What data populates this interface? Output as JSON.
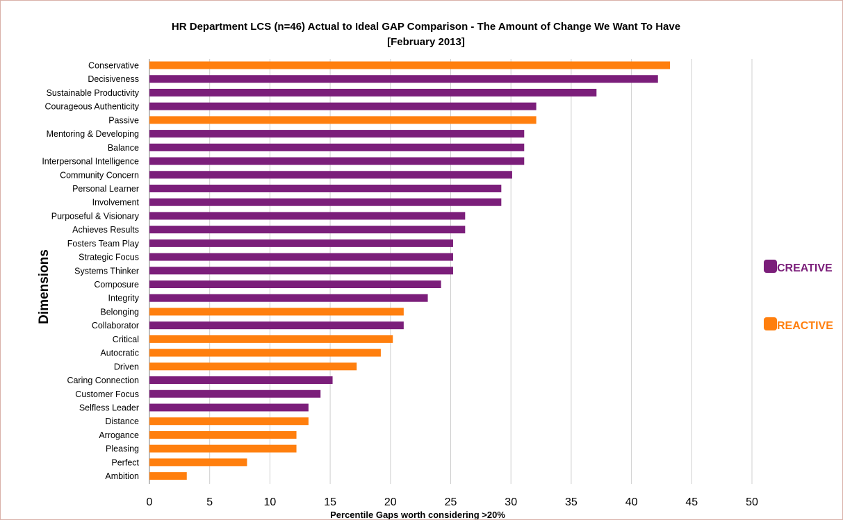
{
  "chart_data": {
    "type": "bar",
    "orientation": "horizontal",
    "title_line1": "HR Department LCS (n=46) Actual to Ideal GAP Comparison - The Amount of Change We Want To Have",
    "title_line2": "[February 2013]",
    "xlabel": "Percentile  Gaps worth considering >20%",
    "ylabel": "Dimensions",
    "xlim": [
      0,
      50
    ],
    "xticks": [
      0,
      5,
      10,
      15,
      20,
      25,
      30,
      35,
      40,
      45,
      50
    ],
    "grid": true,
    "legend_position": "right",
    "legend": [
      {
        "key": "creative",
        "label": "CREATIVE",
        "color": "#7b1e7a"
      },
      {
        "key": "reactive",
        "label": "REACTIVE",
        "color": "#ff7f0e"
      }
    ],
    "bars": [
      {
        "category": "Conservative",
        "value": 43.2,
        "group": "reactive"
      },
      {
        "category": "Decisiveness",
        "value": 42.2,
        "group": "creative"
      },
      {
        "category": "Sustainable Productivity",
        "value": 37.1,
        "group": "creative"
      },
      {
        "category": "Courageous Authenticity",
        "value": 32.1,
        "group": "creative"
      },
      {
        "category": "Passive",
        "value": 32.1,
        "group": "reactive"
      },
      {
        "category": "Mentoring & Developing",
        "value": 31.1,
        "group": "creative"
      },
      {
        "category": "Balance",
        "value": 31.1,
        "group": "creative"
      },
      {
        "category": "Interpersonal Intelligence",
        "value": 31.1,
        "group": "creative"
      },
      {
        "category": "Community Concern",
        "value": 30.1,
        "group": "creative"
      },
      {
        "category": "Personal Learner",
        "value": 29.2,
        "group": "creative"
      },
      {
        "category": "Involvement",
        "value": 29.2,
        "group": "creative"
      },
      {
        "category": "Purposeful & Visionary",
        "value": 26.2,
        "group": "creative"
      },
      {
        "category": "Achieves Results",
        "value": 26.2,
        "group": "creative"
      },
      {
        "category": "Fosters Team Play",
        "value": 25.2,
        "group": "creative"
      },
      {
        "category": "Strategic Focus",
        "value": 25.2,
        "group": "creative"
      },
      {
        "category": "Systems Thinker",
        "value": 25.2,
        "group": "creative"
      },
      {
        "category": "Composure",
        "value": 24.2,
        "group": "creative"
      },
      {
        "category": "Integrity",
        "value": 23.1,
        "group": "creative"
      },
      {
        "category": "Belonging",
        "value": 21.1,
        "group": "reactive"
      },
      {
        "category": "Collaborator",
        "value": 21.1,
        "group": "creative"
      },
      {
        "category": "Critical",
        "value": 20.2,
        "group": "reactive"
      },
      {
        "category": "Autocratic",
        "value": 19.2,
        "group": "reactive"
      },
      {
        "category": "Driven",
        "value": 17.2,
        "group": "reactive"
      },
      {
        "category": "Caring Connection",
        "value": 15.2,
        "group": "creative"
      },
      {
        "category": "Customer Focus",
        "value": 14.2,
        "group": "creative"
      },
      {
        "category": "Selfless Leader",
        "value": 13.2,
        "group": "creative"
      },
      {
        "category": "Distance",
        "value": 13.2,
        "group": "reactive"
      },
      {
        "category": "Arrogance",
        "value": 12.2,
        "group": "reactive"
      },
      {
        "category": "Pleasing",
        "value": 12.2,
        "group": "reactive"
      },
      {
        "category": "Perfect",
        "value": 8.1,
        "group": "reactive"
      },
      {
        "category": "Ambition",
        "value": 3.1,
        "group": "reactive"
      }
    ]
  }
}
